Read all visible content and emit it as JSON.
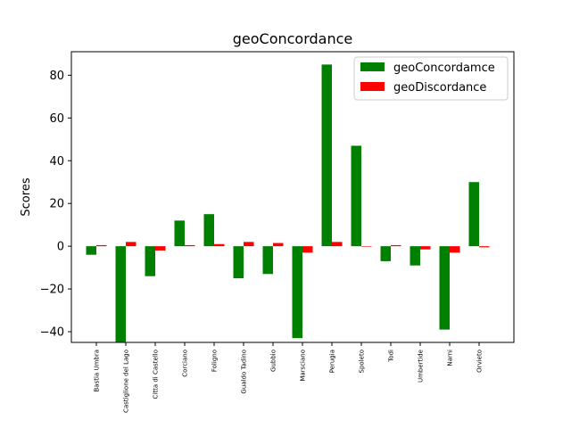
{
  "chart_data": {
    "type": "bar",
    "title": "geoConcordance",
    "xlabel": "",
    "ylabel": "Scores",
    "ylim": [
      -45,
      91
    ],
    "yticks": [
      -40,
      -20,
      0,
      20,
      40,
      60,
      80
    ],
    "grid": false,
    "legend_position": "top-right",
    "categories": [
      "Bastia Umbra",
      "Castiglione del Lago",
      "Citta di Castello",
      "Corciano",
      "Foligno",
      "Gualdo Tadino",
      "Gubbio",
      "Marsciano",
      "Perugia",
      "Spoleto",
      "Todi",
      "Umbertide",
      "Narni",
      "Orvieto"
    ],
    "series": [
      {
        "name": "geoConcordamce",
        "color": "#008000",
        "values": [
          -4,
          -45,
          -14,
          12,
          15,
          -15,
          -13,
          -43,
          85,
          47,
          -7,
          -9,
          -39,
          30
        ]
      },
      {
        "name": "geoDiscordance",
        "color": "#ff0000",
        "values": [
          0.5,
          2,
          -2,
          0.5,
          1,
          2,
          1.5,
          -3,
          2,
          0,
          0.5,
          -1.5,
          -3,
          -0.5
        ]
      }
    ]
  }
}
